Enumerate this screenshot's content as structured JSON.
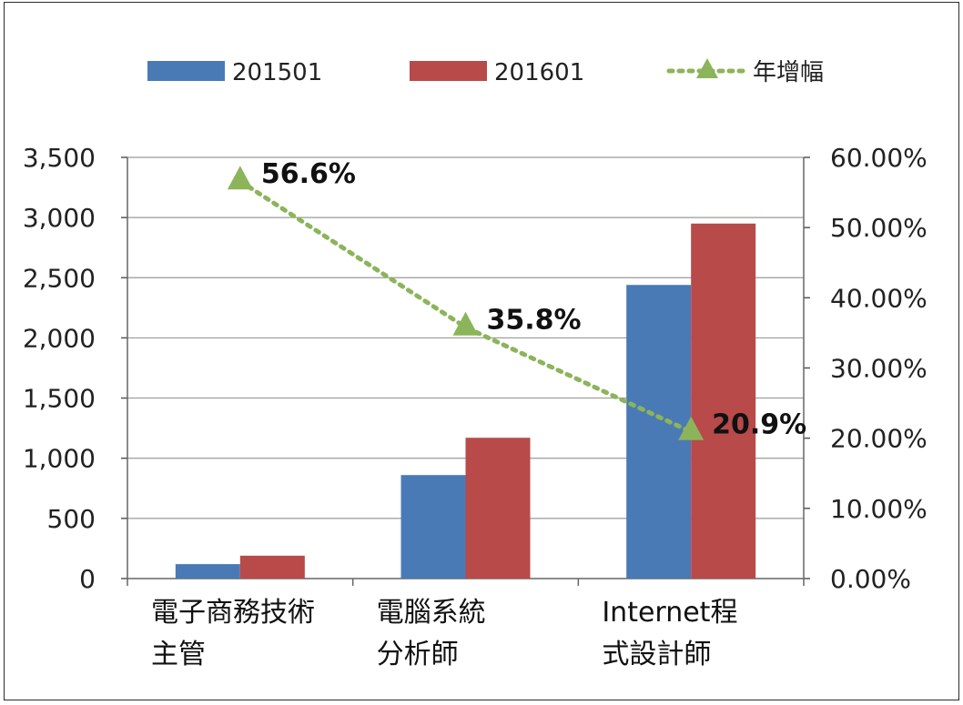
{
  "chart_data": {
    "type": "bar",
    "categories": [
      "電子商務技術\n主管",
      "電腦系統\n分析師",
      "Internet程\n式設計師"
    ],
    "series": [
      {
        "name": "201501",
        "type": "bar",
        "axis": "left",
        "color": "#4a7ab5",
        "values": [
          120,
          860,
          2440
        ]
      },
      {
        "name": "201601",
        "type": "bar",
        "axis": "left",
        "color": "#b84a4a",
        "values": [
          190,
          1170,
          2950
        ]
      },
      {
        "name": "年增幅",
        "type": "line",
        "style": "dotted",
        "marker": "triangle",
        "axis": "right",
        "color": "#8cb45a",
        "values": [
          56.6,
          35.8,
          20.9
        ],
        "labels": [
          "56.6%",
          "35.8%",
          "20.9%"
        ]
      }
    ],
    "y_left": {
      "min": 0,
      "max": 3500,
      "ticks": [
        "0",
        "500",
        "1,000",
        "1,500",
        "2,000",
        "2,500",
        "3,000",
        "3,500"
      ]
    },
    "y_right": {
      "min": 0,
      "max": 60,
      "ticks": [
        "0.00%",
        "10.00%",
        "20.00%",
        "30.00%",
        "40.00%",
        "50.00%",
        "60.00%"
      ]
    },
    "grid": true,
    "legend_position": "top"
  }
}
